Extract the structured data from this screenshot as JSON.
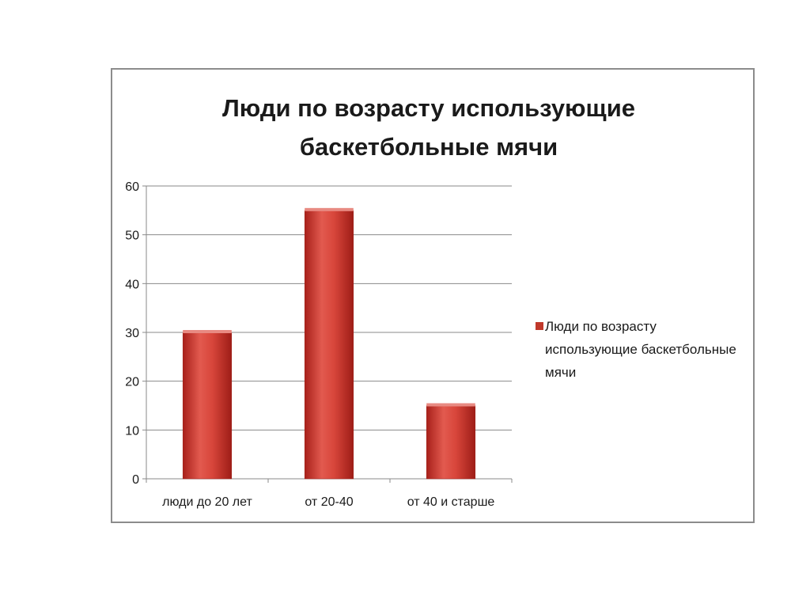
{
  "chart_data": {
    "type": "bar",
    "title": "Люди по возрасту использующие\nбаскетбольные  мячи",
    "categories": [
      "люди до 20 лет",
      "от 20-40",
      "от 40 и старше"
    ],
    "series": [
      {
        "name": "Люди по возрасту использующие баскетбольные мячи",
        "values": [
          30,
          55,
          15
        ]
      }
    ],
    "ylim": [
      0,
      60
    ],
    "yticks": [
      0,
      10,
      20,
      30,
      40,
      50,
      60
    ],
    "grid": true,
    "legend_position": "right",
    "bar_color": "#c0392b"
  }
}
